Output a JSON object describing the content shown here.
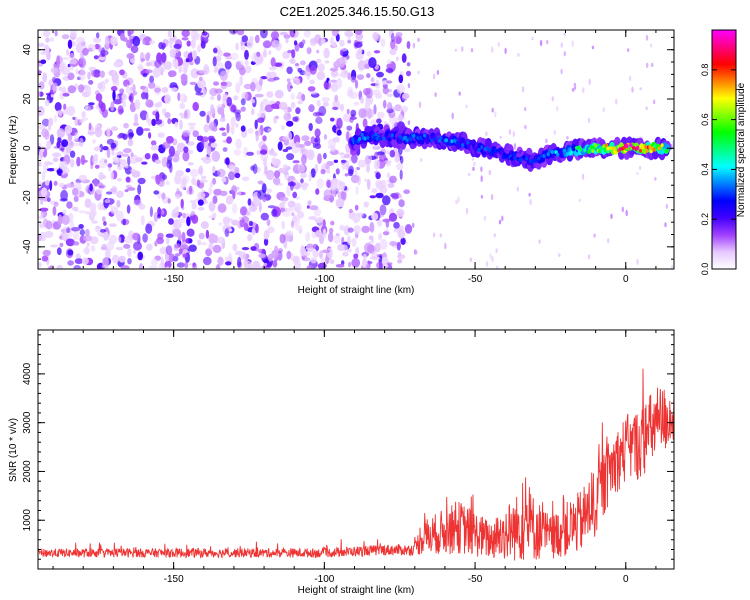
{
  "title": "C2E1.2025.346.15.50.G13",
  "chart_data": [
    {
      "type": "heatmap",
      "name": "spectrogram",
      "xlabel": "Height of straight line (km)",
      "ylabel": "Frequency (Hz)",
      "xlim": [
        -195,
        16
      ],
      "ylim": [
        -49,
        48
      ],
      "xticks": [
        -150,
        -100,
        -50,
        0
      ],
      "yticks": [
        -40,
        -20,
        0,
        20,
        40
      ],
      "colorbar": {
        "label": "Normalized spectral amplitude",
        "range": [
          0.0,
          0.96
        ],
        "ticks": [
          "0.0",
          "0.2",
          "0.4",
          "0.6",
          "0.8"
        ],
        "tick_values": [
          0.0,
          0.2,
          0.4,
          0.6,
          0.8
        ],
        "colors": [
          "#ffffff",
          "#e6c8ff",
          "#a040ff",
          "#4000ff",
          "#0000ff",
          "#0080ff",
          "#00ffff",
          "#00ff80",
          "#00ff00",
          "#80ff00",
          "#ffff00",
          "#ff8000",
          "#ff0000",
          "#ff0080",
          "#ff00ff"
        ]
      },
      "noise_region": {
        "x_from": -195,
        "x_to": -72,
        "amplitude": [
          0.05,
          0.22
        ]
      },
      "signal_track": [
        {
          "x": -91,
          "freq": 3,
          "amp": 0.3
        },
        {
          "x": -86,
          "freq": 5,
          "amp": 0.35
        },
        {
          "x": -80,
          "freq": 5,
          "amp": 0.3
        },
        {
          "x": -72,
          "freq": 4,
          "amp": 0.33
        },
        {
          "x": -65,
          "freq": 4,
          "amp": 0.3
        },
        {
          "x": -58,
          "freq": 3,
          "amp": 0.35
        },
        {
          "x": -50,
          "freq": 1,
          "amp": 0.32
        },
        {
          "x": -42,
          "freq": -2,
          "amp": 0.3
        },
        {
          "x": -35,
          "freq": -4,
          "amp": 0.28
        },
        {
          "x": -30,
          "freq": -5,
          "amp": 0.3
        },
        {
          "x": -25,
          "freq": -2,
          "amp": 0.35
        },
        {
          "x": -18,
          "freq": -1,
          "amp": 0.45
        },
        {
          "x": -10,
          "freq": 0,
          "amp": 0.6
        },
        {
          "x": -4,
          "freq": 0,
          "amp": 0.8
        },
        {
          "x": 2,
          "freq": 0,
          "amp": 0.9
        },
        {
          "x": 8,
          "freq": 0,
          "amp": 0.75
        },
        {
          "x": 14,
          "freq": 0,
          "amp": 0.6
        }
      ]
    },
    {
      "type": "line",
      "name": "snr",
      "xlabel": "Height of straight line (km)",
      "ylabel": "SNR (10 * v/v)",
      "xlim": [
        -195,
        16
      ],
      "ylim": [
        0,
        4900
      ],
      "xticks": [
        -150,
        -100,
        -50,
        0
      ],
      "yticks": [
        1000,
        2000,
        3000,
        4000
      ],
      "color": "#ee3333",
      "envelope": [
        {
          "x": -195,
          "base": 320,
          "spread": 180
        },
        {
          "x": -150,
          "base": 320,
          "spread": 190
        },
        {
          "x": -100,
          "base": 320,
          "spread": 190
        },
        {
          "x": -80,
          "base": 380,
          "spread": 230
        },
        {
          "x": -70,
          "base": 380,
          "spread": 230
        },
        {
          "x": -68,
          "base": 600,
          "spread": 700
        },
        {
          "x": -55,
          "base": 800,
          "spread": 1100
        },
        {
          "x": -45,
          "base": 550,
          "spread": 800
        },
        {
          "x": -33,
          "base": 850,
          "spread": 1600
        },
        {
          "x": -25,
          "base": 600,
          "spread": 900
        },
        {
          "x": -15,
          "base": 900,
          "spread": 1300
        },
        {
          "x": -10,
          "base": 1300,
          "spread": 1500
        },
        {
          "x": -5,
          "base": 2000,
          "spread": 1300
        },
        {
          "x": 0,
          "base": 2400,
          "spread": 1400
        },
        {
          "x": 5,
          "base": 2500,
          "spread": 1500
        },
        {
          "x": 10,
          "base": 2900,
          "spread": 1600
        },
        {
          "x": 16,
          "base": 3100,
          "spread": 1200
        }
      ]
    }
  ]
}
